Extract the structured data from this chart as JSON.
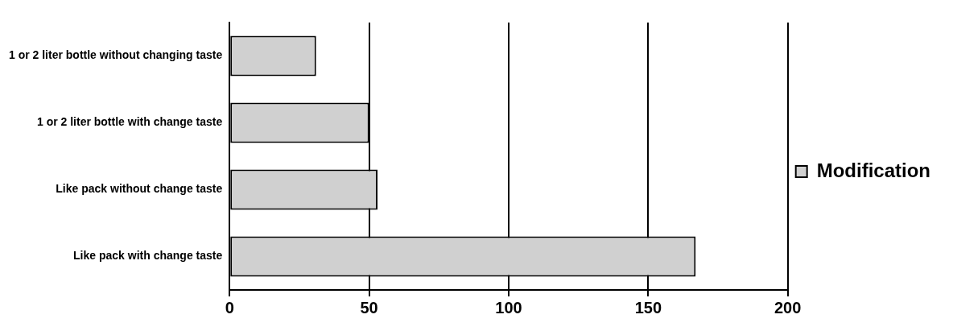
{
  "chart_data": {
    "type": "bar",
    "orientation": "horizontal",
    "categories": [
      "1 or 2 liter bottle without changing taste",
      "1 or 2 liter bottle with change taste",
      "Like pack without change taste",
      "Like pack with change taste"
    ],
    "series": [
      {
        "name": "Modification",
        "color": "#d0d0d0",
        "values": [
          31,
          50,
          53,
          167
        ]
      }
    ],
    "xlim": [
      0,
      200
    ],
    "xticks": [
      0,
      50,
      100,
      150,
      200
    ],
    "grid": "x",
    "legend": "right"
  }
}
